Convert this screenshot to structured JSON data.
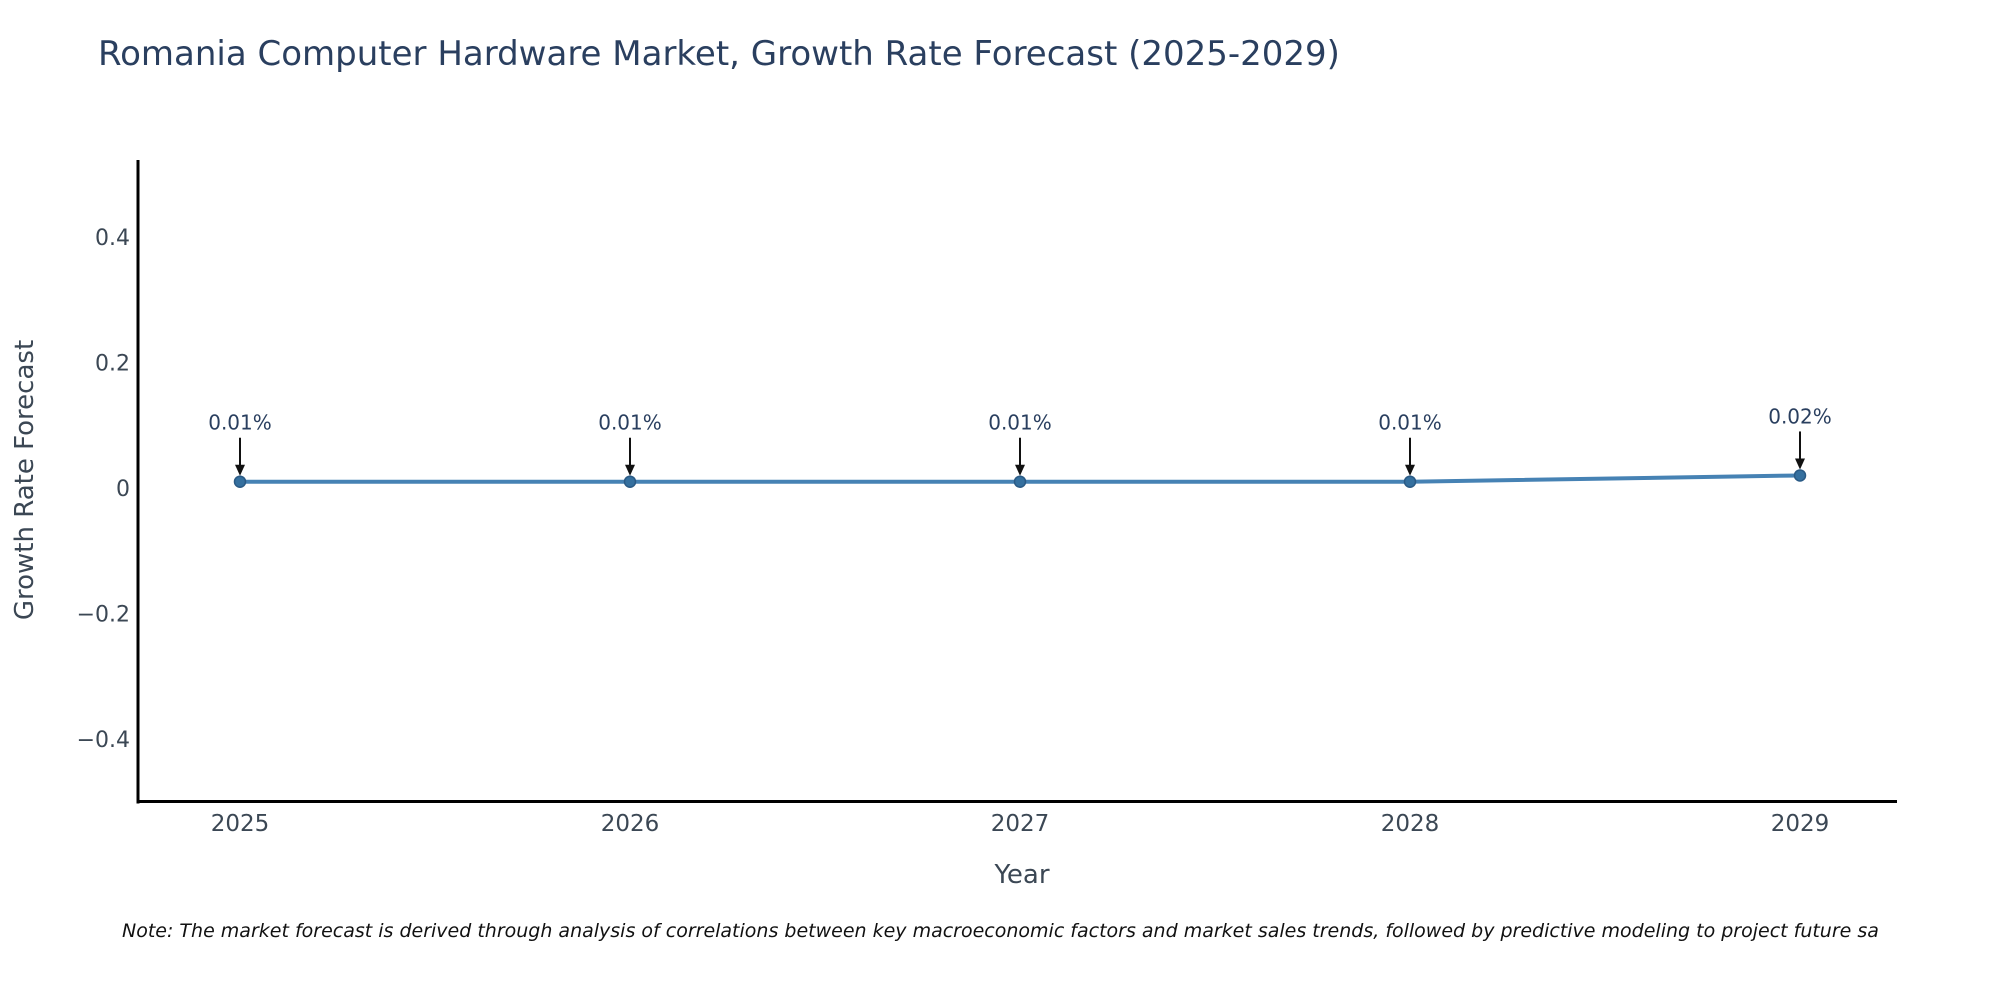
{
  "chart_data": {
    "type": "line",
    "title": "Romania Computer Hardware Market, Growth Rate Forecast (2025-2029)",
    "xlabel": "Year",
    "ylabel": "Growth Rate Forecast",
    "x": [
      2025,
      2026,
      2027,
      2028,
      2029
    ],
    "series": [
      {
        "name": "Growth Rate Forecast",
        "values": [
          0.01,
          0.01,
          0.01,
          0.01,
          0.02
        ]
      }
    ],
    "point_labels": [
      "0.01%",
      "0.01%",
      "0.01%",
      "0.01%",
      "0.02%"
    ],
    "xtick_labels": [
      "2025",
      "2026",
      "2027",
      "2028",
      "2029"
    ],
    "ytick_values": [
      0.4,
      0.2,
      0,
      -0.2,
      -0.4
    ],
    "ytick_labels": [
      "0.4",
      "0.2",
      "0",
      "−0.2",
      "−0.4"
    ],
    "ylim": [
      -0.5,
      0.52
    ],
    "grid": false,
    "legend_position": "none",
    "note": "Note: The market forecast is derived through analysis of correlations between key macroeconomic factors and market sales trends, followed by predictive modeling to project future sa",
    "colors": {
      "line": "#4682b4",
      "marker_fill": "#35709f",
      "marker_edge": "#2a5a85",
      "axis": "#000000",
      "annotation_text": "#2a3f5f",
      "tick_text": "#3b4754",
      "arrow": "#111111",
      "title_text": "#2a3f5f",
      "note_text": "#111111",
      "background": "#ffffff"
    }
  }
}
